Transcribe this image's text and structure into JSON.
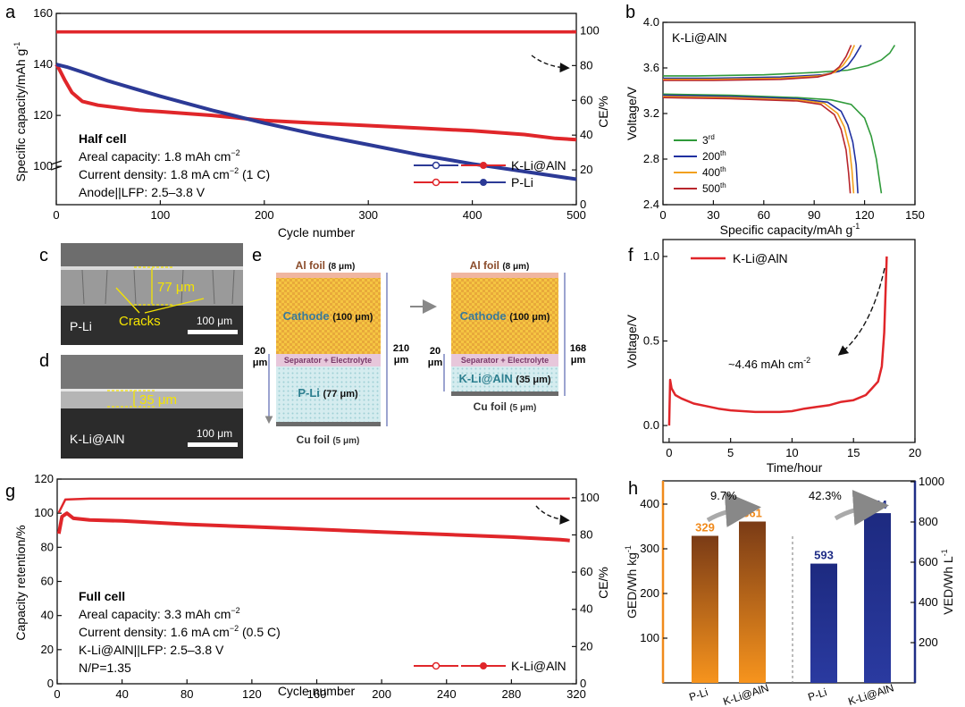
{
  "panels": {
    "a": {
      "letter": "a",
      "x_label": "Cycle number",
      "y_label": "Specific capacity/mAh g",
      "y_label_sup": "-1",
      "y2_label": "CE/%",
      "x_ticks": [
        "0",
        "100",
        "200",
        "300",
        "400",
        "500"
      ],
      "y_ticks": [
        "100",
        "120",
        "140",
        "160"
      ],
      "y2_ticks": [
        "0",
        "20",
        "40",
        "60",
        "80",
        "100"
      ],
      "info": [
        "Half cell",
        "Areal capacity: 1.8 mAh cm",
        "Current density: 1.8 mA cm",
        "Anode||LFP: 2.5–3.8 V"
      ],
      "info_sup": [
        "−2",
        "−2"
      ],
      "info_suffix": [
        "",
        " (1 C)"
      ],
      "legend": [
        "K-Li@AlN",
        "P-Li"
      ]
    },
    "b": {
      "letter": "b",
      "title": "K-Li@AlN",
      "x_label": "Specific capacity/mAh g",
      "x_label_sup": "-1",
      "y_label": "Voltage/V",
      "x_ticks": [
        "0",
        "30",
        "60",
        "90",
        "120",
        "150"
      ],
      "y_ticks": [
        "2.4",
        "2.8",
        "3.2",
        "3.6",
        "4.0"
      ],
      "legend": [
        {
          "base": "3",
          "sup": "rd"
        },
        {
          "base": "200",
          "sup": "th"
        },
        {
          "base": "400",
          "sup": "th"
        },
        {
          "base": "500",
          "sup": "th"
        }
      ]
    },
    "c": {
      "letter": "c",
      "measure": "77 μm",
      "cracks": "Cracks",
      "label": "P-Li",
      "scale": "100 μm"
    },
    "d": {
      "letter": "d",
      "measure": "35 μm",
      "label": "K-Li@AlN",
      "scale": "100 μm"
    },
    "e": {
      "letter": "e",
      "left": {
        "al": "Al foil",
        "al_t": "(8 μm)",
        "cathode": "Cathode",
        "cathode_t": "(100 μm)",
        "sep": "Separator + Electrolyte",
        "anode": "P-Li",
        "anode_t": "(77 μm)",
        "cu": "Cu foil",
        "cu_t": "(5 μm)",
        "dim_small": "20",
        "dim_small_u": "μm",
        "dim_big": "210",
        "dim_big_u": "μm"
      },
      "right": {
        "al": "Al foil",
        "al_t": "(8 μm)",
        "cathode": "Cathode",
        "cathode_t": "(100 μm)",
        "sep": "Separator + Electrolyte",
        "anode": "K-Li@AlN",
        "anode_t": "(35 μm)",
        "cu": "Cu foil",
        "cu_t": "(5 μm)",
        "dim_small": "20",
        "dim_small_u": "μm",
        "dim_big": "168",
        "dim_big_u": "μm"
      }
    },
    "f": {
      "letter": "f",
      "x_label": "Time/hour",
      "y_label": "Voltage/V",
      "x_ticks": [
        "0",
        "5",
        "10",
        "15",
        "20"
      ],
      "y_ticks": [
        "0.0",
        "0.5",
        "1.0"
      ],
      "legend": "K-Li@AlN",
      "annotation": "~4.46 mAh cm",
      "annotation_sup": "-2"
    },
    "g": {
      "letter": "g",
      "x_label": "Cycle number",
      "y_label": "Capacity retention/%",
      "y2_label": "CE/%",
      "x_ticks": [
        "0",
        "40",
        "80",
        "120",
        "160",
        "200",
        "240",
        "280",
        "320"
      ],
      "y_ticks": [
        "0",
        "20",
        "40",
        "60",
        "80",
        "100",
        "120"
      ],
      "y2_ticks": [
        "0",
        "20",
        "40",
        "60",
        "80",
        "100"
      ],
      "info": [
        "Full cell",
        "Areal capacity: 3.3 mAh cm",
        "Current density: 1.6 mA cm",
        "K-Li@AlN||LFP: 2.5–3.8 V",
        "N/P=1.35"
      ],
      "info_sup": [
        "−2",
        "−2"
      ],
      "info_suffix": [
        "",
        " (0.5 C)"
      ],
      "legend": "K-Li@AlN"
    },
    "h": {
      "letter": "h",
      "y_label": "GED/Wh kg",
      "y_label_sup": "-1",
      "y2_label": "VED/Wh L",
      "y2_label_sup": "-1",
      "y_ticks": [
        "100",
        "200",
        "300",
        "400"
      ],
      "y2_ticks": [
        "200",
        "400",
        "600",
        "800",
        "1000"
      ],
      "categories": [
        "P-Li",
        "K-Li@AlN",
        "P-Li",
        "K-Li@AlN"
      ],
      "pct_left": "9.7%",
      "pct_right": "42.3%"
    }
  },
  "chart_data": [
    {
      "panel": "a",
      "type": "line",
      "x_range": [
        0,
        500
      ],
      "y_range": [
        85,
        160
      ],
      "y2_range": [
        0,
        110
      ],
      "series": [
        {
          "name": "K-Li@AlN",
          "axis": "left",
          "color": "#e0262a",
          "points": [
            [
              0,
              140
            ],
            [
              3,
              138
            ],
            [
              8,
              134
            ],
            [
              15,
              129
            ],
            [
              25,
              125.5
            ],
            [
              40,
              124
            ],
            [
              60,
              123
            ],
            [
              80,
              122
            ],
            [
              100,
              121.5
            ],
            [
              150,
              120
            ],
            [
              200,
              118
            ],
            [
              250,
              117
            ],
            [
              300,
              116
            ],
            [
              350,
              115
            ],
            [
              400,
              114
            ],
            [
              450,
              112.5
            ],
            [
              480,
              111
            ],
            [
              500,
              110.5
            ]
          ]
        },
        {
          "name": "P-Li",
          "axis": "left",
          "color": "#2c3a96",
          "points": [
            [
              0,
              140
            ],
            [
              10,
              139
            ],
            [
              25,
              137
            ],
            [
              50,
              133.5
            ],
            [
              75,
              130.5
            ],
            [
              100,
              127.5
            ],
            [
              150,
              122
            ],
            [
              200,
              117
            ],
            [
              250,
              112.5
            ],
            [
              300,
              108.5
            ],
            [
              350,
              104.5
            ],
            [
              400,
              101
            ],
            [
              450,
              98
            ],
            [
              500,
              95
            ]
          ]
        },
        {
          "name": "K-Li@AlN CE",
          "axis": "right",
          "color": "#e0262a",
          "points": [
            [
              0,
              99.5
            ],
            [
              100,
              99.5
            ],
            [
              200,
              99.5
            ],
            [
              300,
              99.5
            ],
            [
              400,
              99.5
            ],
            [
              500,
              99.5
            ]
          ]
        },
        {
          "name": "P-Li CE",
          "axis": "right",
          "color": "#e0262a",
          "points": [
            [
              0,
              99.2
            ],
            [
              100,
              99.2
            ],
            [
              200,
              99.2
            ],
            [
              300,
              99.2
            ],
            [
              400,
              99.2
            ],
            [
              500,
              99.2
            ]
          ]
        }
      ]
    },
    {
      "panel": "b",
      "type": "line",
      "x_range": [
        0,
        150
      ],
      "y_range": [
        2.4,
        4.0
      ],
      "series": [
        {
          "name": "3rd",
          "color": "#2f9a3a",
          "charge": [
            [
              0,
              3.53
            ],
            [
              20,
              3.53
            ],
            [
              60,
              3.54
            ],
            [
              90,
              3.56
            ],
            [
              110,
              3.58
            ],
            [
              122,
              3.62
            ],
            [
              130,
              3.67
            ],
            [
              135,
              3.73
            ],
            [
              138,
              3.8
            ]
          ],
          "discharge": [
            [
              0,
              3.37
            ],
            [
              40,
              3.36
            ],
            [
              80,
              3.34
            ],
            [
              100,
              3.32
            ],
            [
              112,
              3.28
            ],
            [
              120,
              3.16
            ],
            [
              124,
              3.0
            ],
            [
              127,
              2.8
            ],
            [
              129,
              2.6
            ],
            [
              130,
              2.5
            ]
          ]
        },
        {
          "name": "200th",
          "color": "#2030a0",
          "charge": [
            [
              0,
              3.51
            ],
            [
              30,
              3.51
            ],
            [
              70,
              3.52
            ],
            [
              95,
              3.54
            ],
            [
              105,
              3.57
            ],
            [
              110,
              3.62
            ],
            [
              114,
              3.7
            ],
            [
              118,
              3.8
            ]
          ],
          "discharge": [
            [
              0,
              3.36
            ],
            [
              40,
              3.35
            ],
            [
              80,
              3.33
            ],
            [
              98,
              3.3
            ],
            [
              106,
              3.22
            ],
            [
              110,
              3.1
            ],
            [
              113,
              2.95
            ],
            [
              115,
              2.75
            ],
            [
              116,
              2.5
            ]
          ]
        },
        {
          "name": "400th",
          "color": "#f2a01c",
          "charge": [
            [
              0,
              3.5
            ],
            [
              30,
              3.5
            ],
            [
              70,
              3.51
            ],
            [
              93,
              3.53
            ],
            [
              102,
              3.56
            ],
            [
              107,
              3.62
            ],
            [
              111,
              3.7
            ],
            [
              114,
              3.8
            ]
          ],
          "discharge": [
            [
              0,
              3.35
            ],
            [
              40,
              3.34
            ],
            [
              80,
              3.32
            ],
            [
              96,
              3.29
            ],
            [
              104,
              3.2
            ],
            [
              108,
              3.08
            ],
            [
              111,
              2.9
            ],
            [
              112.5,
              2.7
            ],
            [
              113.5,
              2.5
            ]
          ]
        },
        {
          "name": "500th",
          "color": "#b8262c",
          "charge": [
            [
              0,
              3.49
            ],
            [
              30,
              3.49
            ],
            [
              70,
              3.5
            ],
            [
              92,
              3.52
            ],
            [
              100,
              3.55
            ],
            [
              105,
              3.61
            ],
            [
              109,
              3.7
            ],
            [
              112,
              3.8
            ]
          ],
          "discharge": [
            [
              0,
              3.34
            ],
            [
              40,
              3.33
            ],
            [
              80,
              3.31
            ],
            [
              94,
              3.28
            ],
            [
              102,
              3.19
            ],
            [
              106,
              3.06
            ],
            [
              109,
              2.88
            ],
            [
              110.5,
              2.68
            ],
            [
              111.5,
              2.5
            ]
          ]
        }
      ]
    },
    {
      "panel": "f",
      "type": "line",
      "x_range": [
        -0.5,
        20
      ],
      "y_range": [
        -0.1,
        1.1
      ],
      "series": [
        {
          "name": "K-Li@AlN",
          "color": "#e0262a",
          "points": [
            [
              0,
              0.0
            ],
            [
              0.08,
              0.27
            ],
            [
              0.2,
              0.22
            ],
            [
              0.5,
              0.18
            ],
            [
              1,
              0.16
            ],
            [
              2,
              0.13
            ],
            [
              3,
              0.115
            ],
            [
              4,
              0.1
            ],
            [
              5,
              0.09
            ],
            [
              6,
              0.085
            ],
            [
              7,
              0.08
            ],
            [
              8,
              0.08
            ],
            [
              9,
              0.08
            ],
            [
              10,
              0.085
            ],
            [
              11,
              0.1
            ],
            [
              12,
              0.11
            ],
            [
              13,
              0.12
            ],
            [
              14,
              0.14
            ],
            [
              15,
              0.15
            ],
            [
              16,
              0.18
            ],
            [
              16.5,
              0.22
            ],
            [
              17,
              0.26
            ],
            [
              17.3,
              0.35
            ],
            [
              17.5,
              0.55
            ],
            [
              17.7,
              1.0
            ]
          ]
        }
      ]
    },
    {
      "panel": "g",
      "type": "line",
      "x_range": [
        0,
        320
      ],
      "y_range": [
        0,
        120
      ],
      "y2_range": [
        0,
        110
      ],
      "series": [
        {
          "name": "K-Li@AlN",
          "axis": "left",
          "color": "#e0262a",
          "points": [
            [
              1,
              88
            ],
            [
              3,
              98
            ],
            [
              6,
              100
            ],
            [
              10,
              97
            ],
            [
              20,
              96
            ],
            [
              40,
              95.5
            ],
            [
              80,
              93.5
            ],
            [
              120,
              92
            ],
            [
              160,
              90.5
            ],
            [
              200,
              89
            ],
            [
              240,
              87.5
            ],
            [
              280,
              86
            ],
            [
              310,
              84.5
            ],
            [
              316,
              84
            ]
          ]
        },
        {
          "name": "K-Li@AlN CE",
          "axis": "right",
          "color": "#e0262a",
          "points": [
            [
              1,
              92
            ],
            [
              5,
              99
            ],
            [
              20,
              99.5
            ],
            [
              100,
              99.5
            ],
            [
              200,
              99.5
            ],
            [
              300,
              99.5
            ],
            [
              316,
              99.5
            ]
          ]
        }
      ]
    },
    {
      "panel": "h",
      "type": "bar",
      "categories": [
        "P-Li",
        "K-Li@AlN",
        "P-Li",
        "K-Li@AlN"
      ],
      "series": [
        {
          "name": "GED",
          "axis": "left",
          "color": "#f08a1c",
          "values": [
            329,
            361,
            null,
            null
          ]
        },
        {
          "name": "VED",
          "axis": "right",
          "color": "#1f2d86",
          "values": [
            null,
            null,
            593,
            844
          ]
        }
      ],
      "y_range": [
        0,
        400
      ],
      "y2_range": [
        0,
        1000
      ]
    }
  ],
  "colors": {
    "red": "#e0262a",
    "blue": "#2c3a96",
    "orange": "#f08a1c",
    "navy": "#1f2d86",
    "green": "#2f9a3a",
    "yellow": "#f2a01c",
    "darkred": "#b8262c"
  }
}
